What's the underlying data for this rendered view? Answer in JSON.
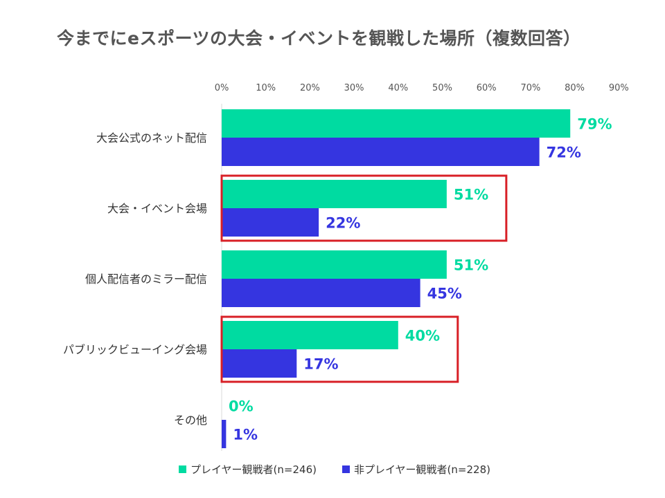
{
  "title": "今までにeスポーツの大会・イベントを観戦した場所（複数回答）",
  "colors": {
    "player": "#00dba1",
    "nonplayer": "#3535e0",
    "highlight": "#d81f26",
    "axis_text": "#555555"
  },
  "chart_data": {
    "type": "bar",
    "orientation": "horizontal",
    "title": "今までにeスポーツの大会・イベントを観戦した場所（複数回答）",
    "xlim": [
      0,
      90
    ],
    "ticks": [
      "0%",
      "10%",
      "20%",
      "30%",
      "40%",
      "50%",
      "60%",
      "70%",
      "80%",
      "90%"
    ],
    "tick_values": [
      0,
      10,
      20,
      30,
      40,
      50,
      60,
      70,
      80,
      90
    ],
    "x_axis_position": "top",
    "grid": false,
    "legend_position": "bottom",
    "categories": [
      "大会公式のネット配信",
      "大会・イベント会場",
      "個人配信者のミラー配信",
      "パブリックビューイング会場",
      "その他"
    ],
    "series": [
      {
        "name": "プレイヤー観戦者(n=246)",
        "values": [
          79,
          51,
          51,
          40,
          0
        ],
        "labels": [
          "79%",
          "51%",
          "51%",
          "40%",
          "0%"
        ]
      },
      {
        "name": "非プレイヤー観戦者(n=228)",
        "values": [
          72,
          22,
          45,
          17,
          1
        ],
        "labels": [
          "72%",
          "22%",
          "45%",
          "17%",
          "1%"
        ]
      }
    ],
    "highlighted_categories": [
      "大会・イベント会場",
      "パブリックビューイング会場"
    ]
  }
}
